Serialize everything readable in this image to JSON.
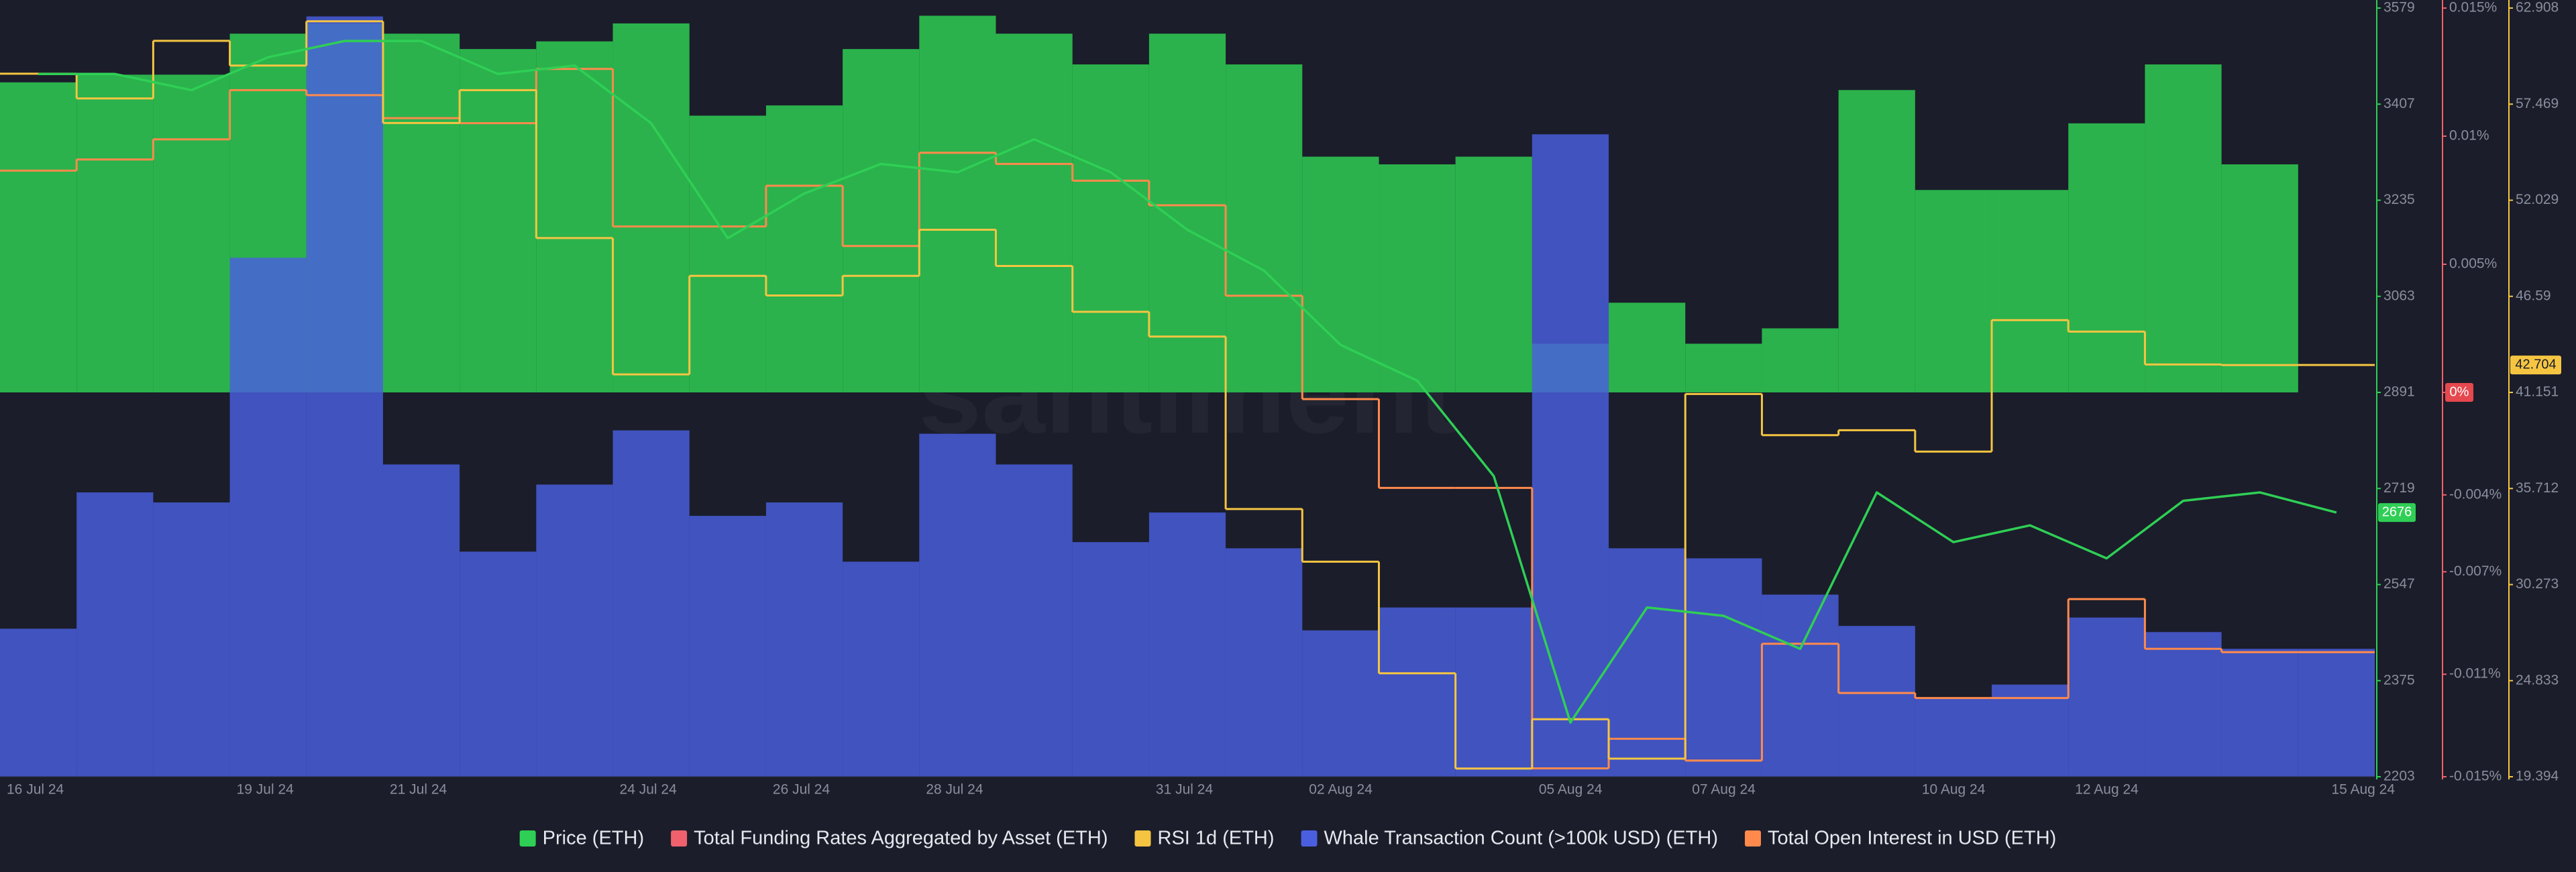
{
  "chart_data": {
    "type": "combo",
    "watermark": "santiment",
    "categories": [
      "16 Jul 24",
      null,
      null,
      "19 Jul 24",
      null,
      "21 Jul 24",
      null,
      null,
      "24 Jul 24",
      null,
      "26 Jul 24",
      null,
      "28 Jul 24",
      null,
      null,
      "31 Jul 24",
      null,
      "02 Aug 24",
      null,
      null,
      "05 Aug 24",
      null,
      "07 Aug 24",
      null,
      null,
      "10 Aug 24",
      null,
      "12 Aug 24",
      null,
      null,
      "15 Aug 24"
    ],
    "ylim": [
      2203,
      3579
    ],
    "yticks": [
      2203,
      2375,
      2547,
      2719,
      2891,
      3063,
      3235,
      3407,
      3579
    ],
    "y2lim": [
      -0.015,
      0.015
    ],
    "y2ticks": [
      {
        "value": -0.015,
        "label": "-0.015%"
      },
      {
        "value": -0.011,
        "label": "-0.011%"
      },
      {
        "value": -0.007,
        "label": "-0.007%"
      },
      {
        "value": -0.004,
        "label": "-0.004%"
      },
      {
        "value": 0,
        "label": "0%"
      },
      {
        "value": 0.005,
        "label": "0.005%"
      },
      {
        "value": 0.01,
        "label": "0.01%"
      },
      {
        "value": 0.015,
        "label": "0.015%"
      }
    ],
    "y3lim": [
      19.394,
      62.908
    ],
    "y3ticks": [
      19.394,
      24.833,
      30.273,
      35.712,
      41.151,
      46.59,
      52.029,
      57.469,
      62.908
    ],
    "grid": false,
    "legend": "bottom",
    "series": [
      {
        "name": "Price (ETH)",
        "color": "#2fcf55",
        "axis": "y",
        "style": "line",
        "values": [
          3461,
          3461,
          3432,
          3491,
          3520,
          3520,
          3461,
          3476,
          3373,
          3167,
          3247,
          3300,
          3285,
          3344,
          3285,
          3182,
          3109,
          2976,
          2912,
          2741,
          2300,
          2506,
          2491,
          2432,
          2712,
          2623,
          2653,
          2594,
          2697,
          2712,
          2676
        ]
      },
      {
        "name": "Total Funding Rates Aggregated by Asset (ETH)",
        "color": "#f0616d",
        "bar_color": "#2bb24c",
        "axis": "y2",
        "style": "bar",
        "values": [
          0.0121,
          0.0124,
          0.0124,
          0.014,
          0.0144,
          0.014,
          0.0134,
          0.0137,
          0.0144,
          0.0108,
          0.0112,
          0.0134,
          0.0147,
          0.014,
          0.0128,
          0.014,
          0.0128,
          0.0092,
          0.0089,
          0.0092,
          0.0019,
          0.0035,
          0.0019,
          0.0025,
          0.0118,
          0.0079,
          0.0079,
          0.0105,
          0.0128,
          0.0089,
          0
        ]
      },
      {
        "name": "RSI 1d (ETH)",
        "color": "#f5c542",
        "axis": "y3",
        "style": "step",
        "values": [
          59.19,
          57.79,
          61.05,
          59.65,
          62.16,
          56.4,
          58.26,
          49.89,
          42.17,
          47.75,
          46.64,
          47.75,
          50.36,
          48.31,
          45.71,
          44.31,
          34.55,
          31.57,
          25.25,
          19.86,
          22.65,
          20.42,
          41.06,
          38.73,
          39.01,
          37.8,
          45.24,
          44.59,
          42.73,
          42.7,
          42.704
        ]
      },
      {
        "name": "Whale Transaction Count (>100k USD) (ETH)",
        "color": "#4a5fe0",
        "axis": "y",
        "style": "bar",
        "values": [
          2468,
          2712,
          2694,
          3132,
          3564,
          2762,
          2606,
          2726,
          2823,
          2670,
          2694,
          2588,
          2817,
          2762,
          2623,
          2676,
          2612,
          2465,
          2506,
          2506,
          3353,
          2612,
          2594,
          2529,
          2473,
          2344,
          2368,
          2488,
          2462,
          2432,
          2432
        ]
      },
      {
        "name": "Total Open Interest in USD (ETH)",
        "color": "#ff8a4c",
        "axis": "y",
        "style": "step",
        "values": [
          3288,
          3308,
          3344,
          3432,
          3423,
          3382,
          3373,
          3470,
          3188,
          3188,
          3261,
          3153,
          3320,
          3300,
          3270,
          3226,
          3064,
          2879,
          2720,
          2720,
          2218,
          2271,
          2232,
          2441,
          2353,
          2344,
          2344,
          2521,
          2432,
          2426,
          2426
        ]
      }
    ]
  }
}
